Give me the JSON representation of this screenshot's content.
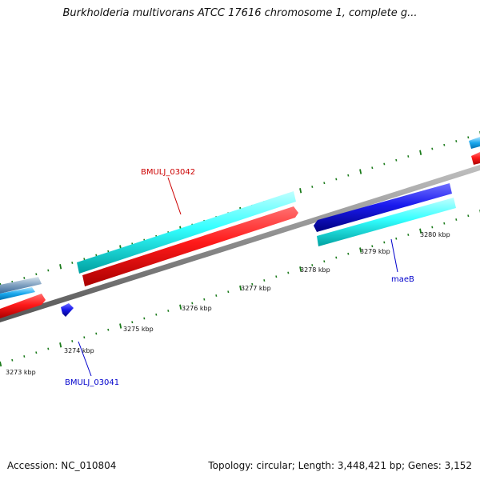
{
  "title": "Burkholderia multivorans ATCC 17616 chromosome 1, complete g...",
  "footer": {
    "accession": "Accession: NC_010804",
    "info": "Topology: circular; Length: 3,448,421 bp; Genes: 3,152"
  },
  "colors": {
    "forward_gene": "#ff1a1a",
    "forward_cds": "#33ffff",
    "reverse_gene": "#1a1aee",
    "reverse_cds": "#33ffff",
    "backbone": "#8a8a8a",
    "ticks": "#1a7a1a",
    "label_forward": "#cc0000",
    "label_reverse": "#0000cc"
  },
  "scale_labels": [
    "3273 kbp",
    "3274 kbp",
    "3275 kbp",
    "3276 kbp",
    "3277 kbp",
    "3278 kbp",
    "3279 kbp",
    "3280 kbp"
  ],
  "genes": [
    {
      "name": "BMULJ_03042",
      "strand": "forward"
    },
    {
      "name": "maeB",
      "strand": "reverse"
    },
    {
      "name": "BMULJ_03041",
      "strand": "reverse"
    }
  ]
}
